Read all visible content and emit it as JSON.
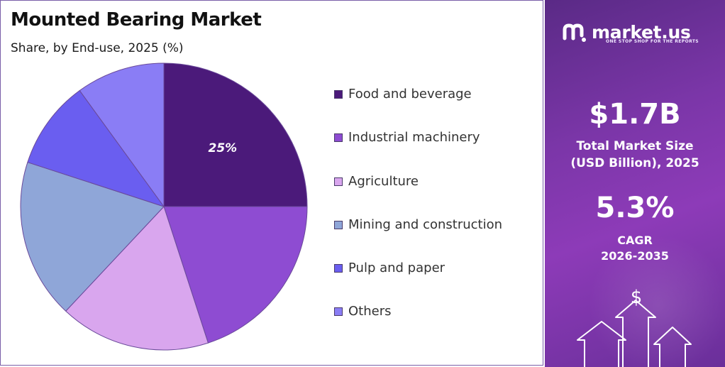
{
  "chart_data": {
    "type": "pie",
    "title": "Mounted Bearing Market",
    "subtitle": "Share, by End-use, 2025 (%)",
    "categories": [
      "Food and beverage",
      "Industrial machinery",
      "Agriculture",
      "Mining and construction",
      "Pulp and paper",
      "Others"
    ],
    "values": [
      25,
      20,
      17,
      18,
      10,
      10
    ],
    "colors": [
      "#4b1a7a",
      "#8e4cd2",
      "#d9a6ee",
      "#8fa6d8",
      "#6a5ef0",
      "#8a7df5"
    ],
    "data_labels": [
      "25%",
      "",
      "",
      "",
      "",
      ""
    ],
    "legend_position": "right"
  },
  "sidebar": {
    "brand": "market.us",
    "tagline": "ONE STOP SHOP FOR THE REPORTS",
    "market_size_value": "$1.7B",
    "market_size_caption_1": "Total Market Size",
    "market_size_caption_2": "(USD Billion), 2025",
    "cagr_value": "5.3%",
    "cagr_caption_1": "CAGR",
    "cagr_caption_2": "2026-2035",
    "dollar_symbol": "$"
  }
}
